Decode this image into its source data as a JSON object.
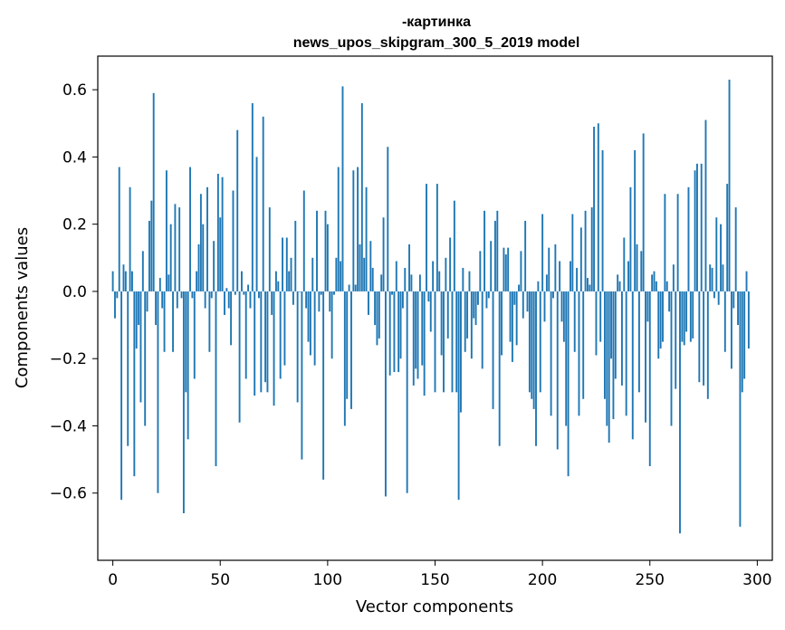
{
  "chart_data": {
    "type": "bar",
    "title_line1": "-картинка",
    "title_line2": "news_upos_skipgram_300_5_2019 model",
    "xlabel": "Vector components",
    "ylabel": "Components values",
    "xlim": [
      -7,
      307
    ],
    "ylim": [
      -0.8,
      0.7
    ],
    "xticks": [
      0,
      50,
      100,
      150,
      200,
      250,
      300
    ],
    "xtick_labels": [
      "0",
      "50",
      "100",
      "150",
      "200",
      "250",
      "300"
    ],
    "yticks": [
      -0.6,
      -0.4,
      -0.2,
      0.0,
      0.2,
      0.4,
      0.6
    ],
    "ytick_labels": [
      "−0.6",
      "−0.4",
      "−0.2",
      "0.0",
      "0.2",
      "0.4",
      "0.6"
    ],
    "bar_color": "#1f77b4",
    "grid": false,
    "values": [
      0.06,
      -0.08,
      -0.02,
      0.37,
      -0.62,
      0.08,
      0.06,
      -0.46,
      0.31,
      0.06,
      -0.55,
      -0.17,
      -0.1,
      -0.33,
      0.12,
      -0.4,
      -0.06,
      0.21,
      0.27,
      0.59,
      -0.1,
      -0.6,
      0.04,
      -0.05,
      -0.18,
      0.36,
      0.05,
      0.2,
      -0.18,
      0.26,
      -0.05,
      0.25,
      -0.02,
      -0.66,
      -0.3,
      -0.44,
      0.37,
      -0.02,
      -0.26,
      0.06,
      0.14,
      0.29,
      0.2,
      -0.05,
      0.31,
      -0.18,
      -0.02,
      0.15,
      -0.52,
      0.35,
      0.22,
      0.34,
      -0.07,
      0.01,
      -0.05,
      -0.16,
      0.3,
      -0.01,
      0.48,
      -0.39,
      0.06,
      -0.01,
      -0.26,
      0.02,
      -0.05,
      0.56,
      -0.31,
      0.4,
      -0.02,
      -0.3,
      0.52,
      -0.27,
      -0.3,
      0.25,
      -0.07,
      -0.34,
      0.06,
      0.03,
      -0.26,
      0.16,
      -0.22,
      0.16,
      0.06,
      0.1,
      -0.04,
      0.21,
      -0.33,
      0.0,
      -0.5,
      0.3,
      -0.05,
      -0.15,
      -0.19,
      0.1,
      -0.22,
      0.24,
      -0.06,
      -0.01,
      -0.56,
      0.24,
      0.2,
      -0.06,
      -0.2,
      -0.01,
      0.1,
      0.37,
      0.09,
      0.61,
      -0.4,
      -0.32,
      0.02,
      -0.35,
      0.36,
      0.02,
      0.37,
      0.14,
      0.56,
      0.1,
      0.31,
      -0.07,
      0.15,
      0.07,
      -0.1,
      -0.16,
      -0.14,
      0.05,
      0.22,
      -0.61,
      0.43,
      -0.25,
      -0.01,
      -0.24,
      0.09,
      -0.24,
      -0.2,
      -0.05,
      0.07,
      -0.6,
      0.14,
      0.05,
      -0.28,
      -0.23,
      -0.26,
      0.05,
      -0.22,
      -0.31,
      0.32,
      -0.03,
      -0.12,
      0.09,
      -0.3,
      0.32,
      0.06,
      -0.19,
      -0.3,
      0.1,
      -0.14,
      0.16,
      -0.3,
      0.27,
      -0.3,
      -0.62,
      -0.36,
      0.07,
      -0.18,
      -0.14,
      0.06,
      -0.2,
      -0.08,
      -0.1,
      -0.04,
      0.12,
      -0.23,
      0.24,
      -0.05,
      -0.02,
      0.15,
      -0.35,
      0.21,
      0.24,
      -0.46,
      -0.19,
      0.13,
      0.11,
      0.13,
      -0.15,
      -0.21,
      -0.04,
      -0.16,
      0.02,
      0.12,
      -0.08,
      0.21,
      -0.06,
      -0.3,
      -0.32,
      -0.35,
      -0.46,
      0.03,
      -0.3,
      0.23,
      -0.09,
      0.05,
      0.13,
      -0.37,
      -0.02,
      0.14,
      -0.47,
      0.09,
      -0.09,
      -0.15,
      -0.4,
      -0.55,
      0.09,
      0.23,
      -0.18,
      0.07,
      -0.37,
      0.19,
      -0.32,
      0.24,
      0.04,
      0.02,
      0.25,
      0.49,
      -0.19,
      0.5,
      -0.15,
      0.42,
      -0.32,
      -0.4,
      -0.45,
      -0.2,
      -0.38,
      -0.26,
      0.05,
      0.03,
      -0.28,
      0.16,
      -0.37,
      0.09,
      0.31,
      -0.44,
      0.42,
      0.14,
      -0.3,
      0.12,
      0.47,
      -0.39,
      -0.09,
      -0.52,
      0.05,
      0.06,
      0.03,
      -0.2,
      -0.17,
      -0.15,
      0.29,
      0.03,
      -0.06,
      -0.4,
      0.08,
      -0.29,
      0.29,
      -0.72,
      -0.15,
      -0.16,
      -0.12,
      0.31,
      -0.15,
      -0.14,
      0.36,
      0.38,
      -0.27,
      0.38,
      -0.28,
      0.51,
      -0.32,
      0.08,
      0.07,
      -0.02,
      0.22,
      -0.04,
      0.2,
      0.08,
      -0.18,
      0.32,
      0.63,
      -0.23,
      -0.05,
      0.25,
      -0.1,
      -0.7,
      -0.3,
      -0.26,
      0.06,
      -0.17
    ]
  }
}
